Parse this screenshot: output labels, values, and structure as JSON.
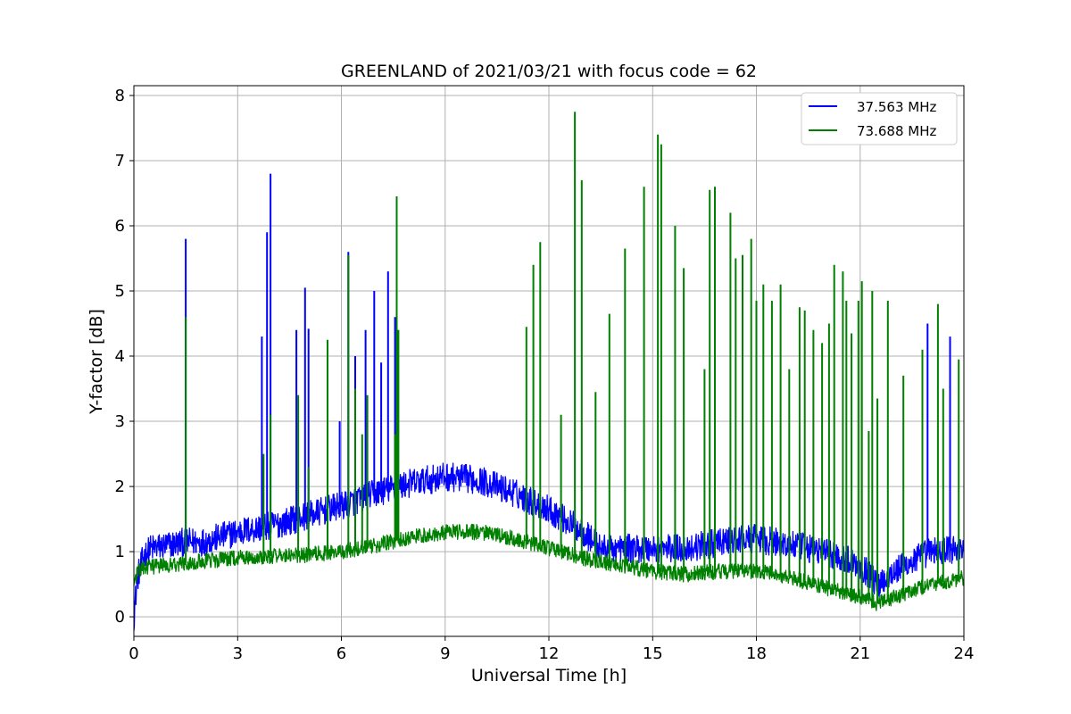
{
  "chart_data": {
    "type": "line",
    "title": "GREENLAND of 2021/03/21 with focus code = 62",
    "xlabel": "Universal Time [h]",
    "ylabel": "Y-factor [dB]",
    "xlim": [
      0,
      24
    ],
    "ylim": [
      -0.3,
      8.15
    ],
    "x_ticks": [
      0,
      3,
      6,
      9,
      12,
      15,
      18,
      21,
      24
    ],
    "y_ticks": [
      0,
      1,
      2,
      3,
      4,
      5,
      6,
      7,
      8
    ],
    "grid": true,
    "legend_position": "top-right",
    "series": [
      {
        "name": "37.563 MHz",
        "color": "#0000ff",
        "baseline": [
          [
            0.0,
            0.0
          ],
          [
            0.1,
            0.6
          ],
          [
            0.3,
            0.95
          ],
          [
            0.5,
            1.05
          ],
          [
            1.0,
            1.1
          ],
          [
            1.5,
            1.15
          ],
          [
            2.0,
            1.15
          ],
          [
            3.0,
            1.3
          ],
          [
            4.0,
            1.4
          ],
          [
            5.0,
            1.55
          ],
          [
            6.0,
            1.7
          ],
          [
            7.0,
            1.9
          ],
          [
            8.0,
            2.05
          ],
          [
            9.0,
            2.15
          ],
          [
            10.0,
            2.1
          ],
          [
            11.0,
            1.9
          ],
          [
            12.0,
            1.65
          ],
          [
            13.0,
            1.3
          ],
          [
            13.5,
            1.05
          ],
          [
            14.0,
            1.05
          ],
          [
            15.0,
            1.05
          ],
          [
            16.0,
            1.05
          ],
          [
            17.0,
            1.15
          ],
          [
            18.0,
            1.2
          ],
          [
            19.0,
            1.1
          ],
          [
            20.0,
            1.0
          ],
          [
            21.0,
            0.8
          ],
          [
            21.5,
            0.5
          ],
          [
            22.0,
            0.7
          ],
          [
            23.0,
            1.0
          ],
          [
            24.0,
            1.05
          ]
        ],
        "noise_amplitude": 0.22,
        "spikes": [
          [
            1.5,
            5.8
          ],
          [
            3.7,
            4.3
          ],
          [
            3.85,
            5.9
          ],
          [
            3.95,
            6.8
          ],
          [
            4.7,
            4.4
          ],
          [
            4.95,
            5.05
          ],
          [
            5.05,
            4.42
          ],
          [
            5.6,
            3.2
          ],
          [
            5.95,
            3.0
          ],
          [
            6.2,
            5.6
          ],
          [
            6.4,
            4.0
          ],
          [
            6.7,
            4.4
          ],
          [
            6.95,
            5.0
          ],
          [
            7.15,
            3.9
          ],
          [
            7.35,
            5.3
          ],
          [
            7.55,
            4.6
          ],
          [
            7.6,
            6.45
          ],
          [
            22.95,
            4.5
          ],
          [
            23.6,
            4.3
          ]
        ]
      },
      {
        "name": "73.688 MHz",
        "color": "#008000",
        "baseline": [
          [
            0.0,
            0.5
          ],
          [
            0.1,
            0.7
          ],
          [
            0.3,
            0.75
          ],
          [
            1.0,
            0.8
          ],
          [
            2.0,
            0.85
          ],
          [
            3.0,
            0.9
          ],
          [
            4.0,
            0.93
          ],
          [
            5.0,
            0.95
          ],
          [
            6.0,
            1.0
          ],
          [
            7.0,
            1.1
          ],
          [
            8.0,
            1.22
          ],
          [
            9.0,
            1.3
          ],
          [
            10.0,
            1.3
          ],
          [
            11.0,
            1.2
          ],
          [
            12.0,
            1.05
          ],
          [
            13.0,
            0.9
          ],
          [
            14.0,
            0.8
          ],
          [
            15.0,
            0.7
          ],
          [
            16.0,
            0.65
          ],
          [
            17.0,
            0.7
          ],
          [
            18.0,
            0.7
          ],
          [
            19.0,
            0.6
          ],
          [
            20.0,
            0.45
          ],
          [
            21.0,
            0.3
          ],
          [
            21.5,
            0.2
          ],
          [
            22.0,
            0.3
          ],
          [
            23.0,
            0.5
          ],
          [
            24.0,
            0.6
          ]
        ],
        "noise_amplitude": 0.12,
        "spikes": [
          [
            1.5,
            4.6
          ],
          [
            3.75,
            2.5
          ],
          [
            3.95,
            3.1
          ],
          [
            4.75,
            3.4
          ],
          [
            5.05,
            2.3
          ],
          [
            5.6,
            4.25
          ],
          [
            6.2,
            5.55
          ],
          [
            6.4,
            3.5
          ],
          [
            6.6,
            2.8
          ],
          [
            6.75,
            3.4
          ],
          [
            7.55,
            2.8
          ],
          [
            7.6,
            6.45
          ],
          [
            7.65,
            4.4
          ],
          [
            11.35,
            4.45
          ],
          [
            11.55,
            5.4
          ],
          [
            11.75,
            5.75
          ],
          [
            12.35,
            3.1
          ],
          [
            12.75,
            7.75
          ],
          [
            12.95,
            6.7
          ],
          [
            13.35,
            3.45
          ],
          [
            13.75,
            4.65
          ],
          [
            14.2,
            5.65
          ],
          [
            14.75,
            6.6
          ],
          [
            15.15,
            7.4
          ],
          [
            15.25,
            7.25
          ],
          [
            15.65,
            6.0
          ],
          [
            15.9,
            5.35
          ],
          [
            16.5,
            3.8
          ],
          [
            16.65,
            6.55
          ],
          [
            16.8,
            6.6
          ],
          [
            17.25,
            6.2
          ],
          [
            17.4,
            5.5
          ],
          [
            17.6,
            5.55
          ],
          [
            17.85,
            5.8
          ],
          [
            18.0,
            4.85
          ],
          [
            18.2,
            5.1
          ],
          [
            18.45,
            4.85
          ],
          [
            18.7,
            5.1
          ],
          [
            18.95,
            3.8
          ],
          [
            19.25,
            4.75
          ],
          [
            19.4,
            4.7
          ],
          [
            19.65,
            4.4
          ],
          [
            19.9,
            4.2
          ],
          [
            20.1,
            4.5
          ],
          [
            20.25,
            5.4
          ],
          [
            20.5,
            5.3
          ],
          [
            20.6,
            4.85
          ],
          [
            20.75,
            4.35
          ],
          [
            20.95,
            4.85
          ],
          [
            21.05,
            5.15
          ],
          [
            21.25,
            2.85
          ],
          [
            21.35,
            5.0
          ],
          [
            21.5,
            3.35
          ],
          [
            21.8,
            4.85
          ],
          [
            22.25,
            3.7
          ],
          [
            22.8,
            4.1
          ],
          [
            23.25,
            4.8
          ],
          [
            23.4,
            3.5
          ],
          [
            23.85,
            3.95
          ]
        ]
      }
    ]
  }
}
